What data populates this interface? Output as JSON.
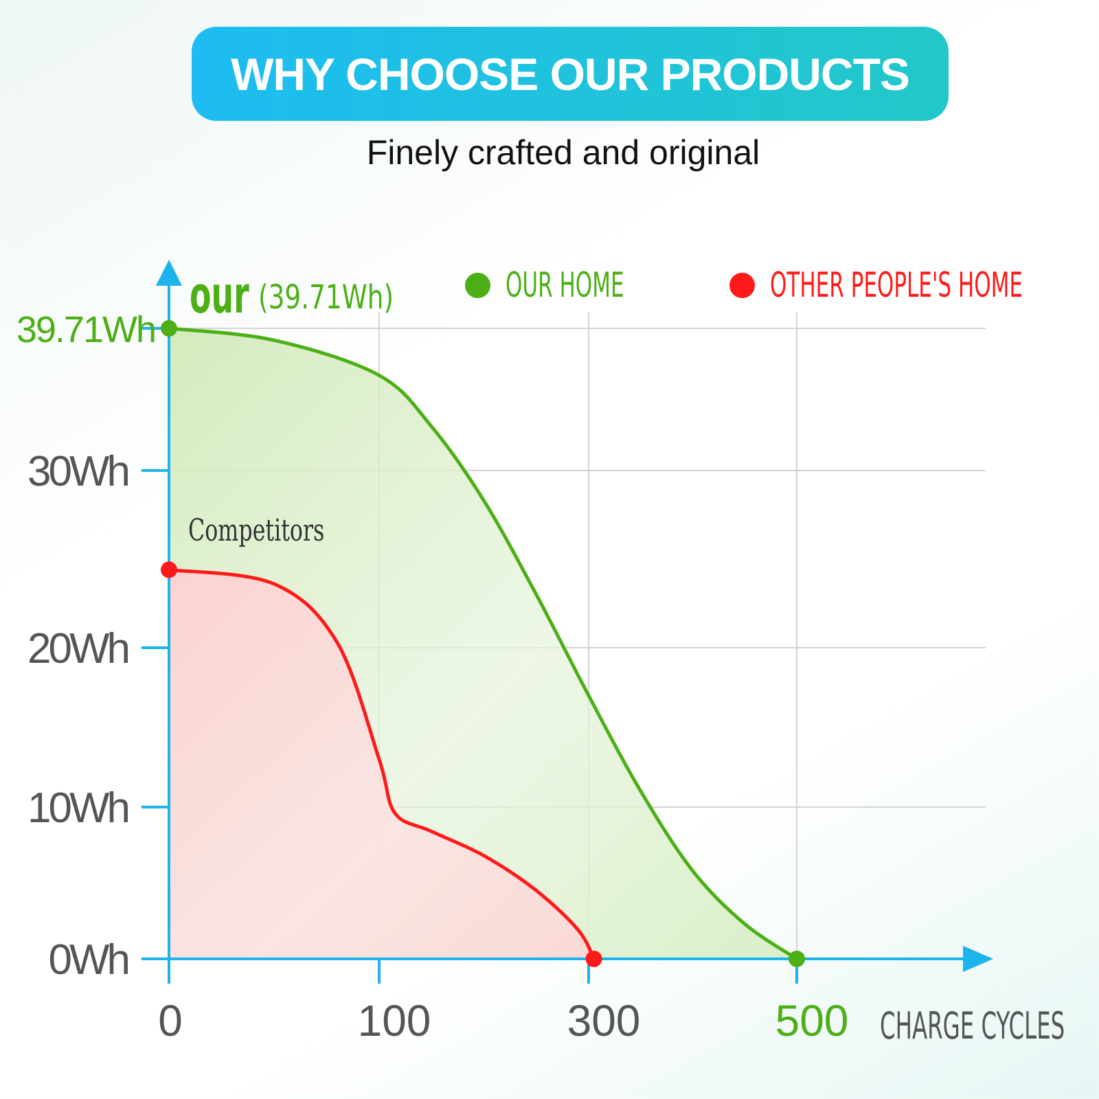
{
  "header": {
    "title": "WHY CHOOSE OUR PRODUCTS"
  },
  "subtitle": "Finely crafted and original",
  "colors": {
    "accent_blue": "#1cb4ec",
    "ours_green": "#4caf15",
    "theirs_red": "#ff1a1a",
    "grid": "#d4d4d4",
    "tick_text": "#555555"
  },
  "chart_data": {
    "type": "area",
    "xlabel": "CHARGE CYCLES",
    "ylabel": "",
    "x_ticks": [
      {
        "label": "0",
        "value": 0
      },
      {
        "label": "100",
        "value": 100
      },
      {
        "label": "300",
        "value": 300
      },
      {
        "label": "500",
        "value": 500,
        "highlight": true
      }
    ],
    "y_ticks": [
      {
        "label": "0Wh",
        "value": 0
      },
      {
        "label": "10Wh",
        "value": 10
      },
      {
        "label": "20Wh",
        "value": 20
      },
      {
        "label": "30Wh",
        "value": 30
      },
      {
        "label": "39.71Wh",
        "value": 39.71,
        "highlight": true
      }
    ],
    "ylim": [
      0,
      39.71
    ],
    "grid": true,
    "legend_position": "top-right",
    "legend": [
      "OUR HOME",
      "OTHER PEOPLE'S HOME"
    ],
    "annotations": {
      "ours_main": "our",
      "ours_sub": "(39.71Wh)",
      "competitors": "Competitors"
    },
    "series": [
      {
        "name": "OUR HOME",
        "points": [
          [
            0,
            39.71
          ],
          [
            50,
            38.9
          ],
          [
            100,
            36.5
          ],
          [
            150,
            33.0
          ],
          [
            200,
            28.3
          ],
          [
            250,
            23.0
          ],
          [
            300,
            17.0
          ],
          [
            350,
            11.0
          ],
          [
            400,
            5.8
          ],
          [
            450,
            2.3
          ],
          [
            500,
            0
          ]
        ]
      },
      {
        "name": "OTHER PEOPLE'S HOME",
        "points": [
          [
            0,
            24.4
          ],
          [
            50,
            23.6
          ],
          [
            80,
            20.3
          ],
          [
            100,
            13.0
          ],
          [
            115,
            9.6
          ],
          [
            150,
            8.4
          ],
          [
            200,
            6.8
          ],
          [
            250,
            4.5
          ],
          [
            290,
            1.9
          ],
          [
            305,
            0
          ]
        ]
      }
    ]
  }
}
